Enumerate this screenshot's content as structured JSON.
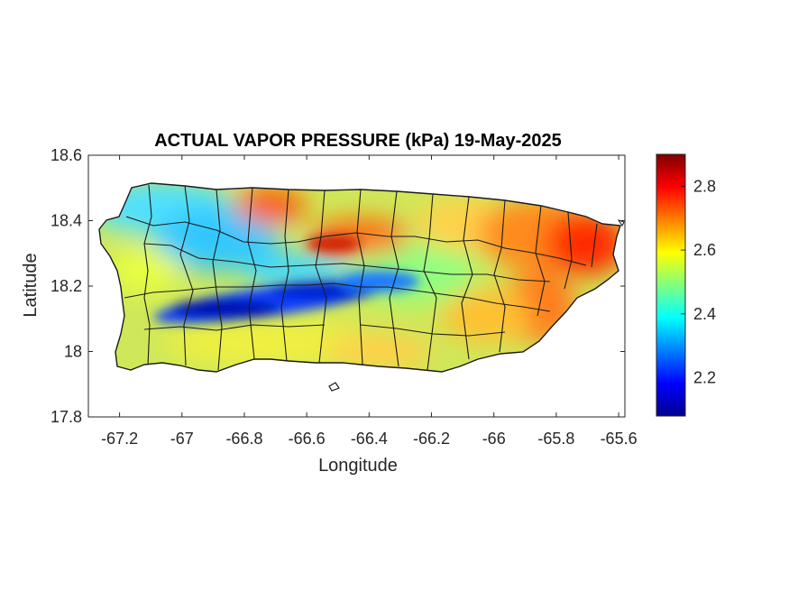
{
  "title": "ACTUAL VAPOR PRESSURE (kPa) 19-May-2025",
  "xlabel": "Longitude",
  "ylabel": "Latitude",
  "xlim": [
    -67.3,
    -65.58
  ],
  "ylim": [
    17.8,
    18.6
  ],
  "x_ticks": [
    "-67.2",
    "-67",
    "-66.8",
    "-66.6",
    "-66.4",
    "-66.2",
    "-66",
    "-65.8",
    "-65.6"
  ],
  "x_tick_values": [
    -67.2,
    -67.0,
    -66.8,
    -66.6,
    -66.4,
    -66.2,
    -66.0,
    -65.8,
    -65.6
  ],
  "y_ticks": [
    "18.6",
    "18.4",
    "18.2",
    "18",
    "17.8"
  ],
  "y_tick_values": [
    18.6,
    18.4,
    18.2,
    18.0,
    17.8
  ],
  "colorbar": {
    "colormap": "jet",
    "clim": [
      2.08,
      2.9
    ],
    "ticks": [
      "2.8",
      "2.6",
      "2.4",
      "2.2"
    ],
    "tick_values": [
      2.8,
      2.6,
      2.4,
      2.2
    ]
  },
  "map": {
    "region": "Puerto Rico",
    "boundaries": "municipalities",
    "field": "actual vapor pressure (kPa)"
  }
}
